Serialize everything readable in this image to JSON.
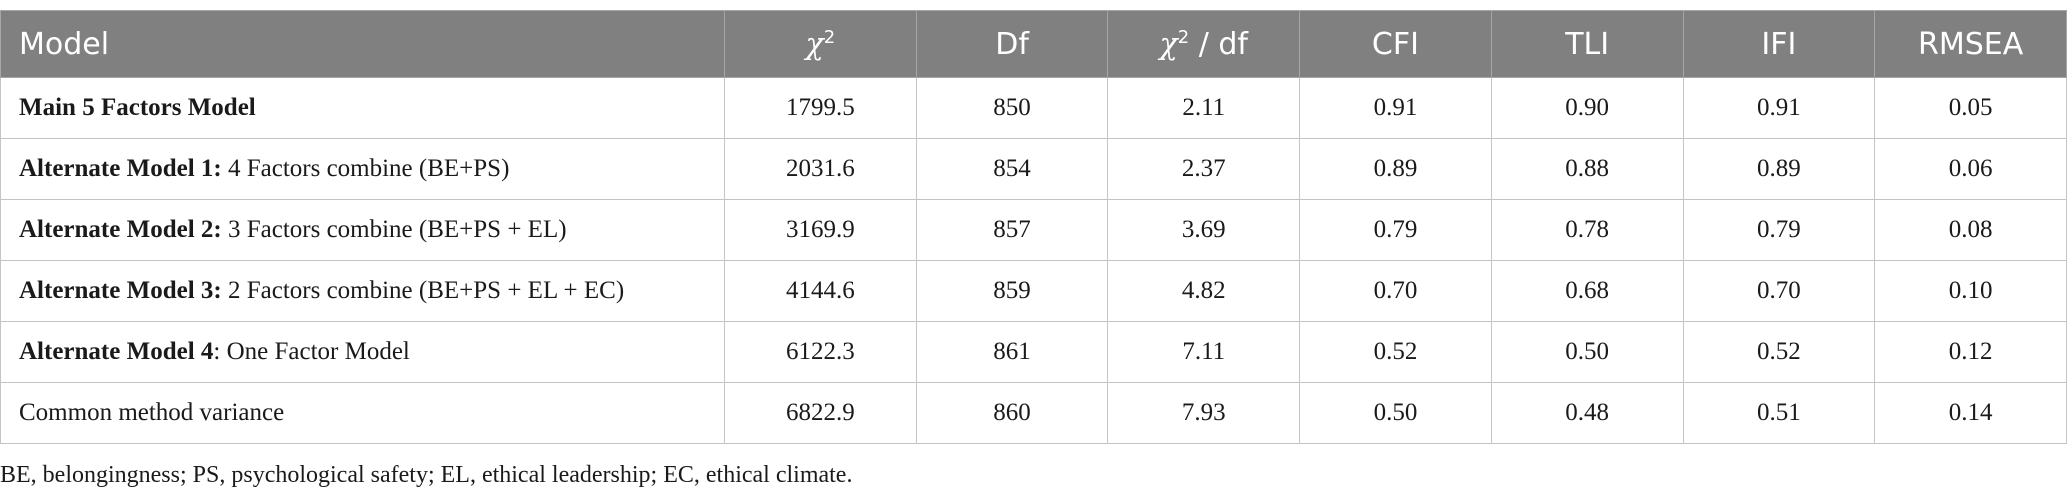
{
  "table": {
    "header": [
      {
        "text": "Model"
      },
      {
        "symbol": "χ",
        "sup": "2"
      },
      {
        "text": "Df"
      },
      {
        "symbol": "χ",
        "sup": "2",
        "text": " / df"
      },
      {
        "text": "CFI"
      },
      {
        "text": "TLI"
      },
      {
        "text": "IFI"
      },
      {
        "text": "RMSEA"
      }
    ],
    "rows": [
      [
        {
          "bold": "Main 5 Factors Model"
        },
        "1799.5",
        "850",
        "2.11",
        "0.91",
        "0.90",
        "0.91",
        "0.05"
      ],
      [
        {
          "bold": "Alternate Model 1:",
          "text": " 4 Factors combine (BE+PS)"
        },
        "2031.6",
        "854",
        "2.37",
        "0.89",
        "0.88",
        "0.89",
        "0.06"
      ],
      [
        {
          "bold": "Alternate Model 2:",
          "text": " 3 Factors combine (BE+PS + EL)"
        },
        "3169.9",
        "857",
        "3.69",
        "0.79",
        "0.78",
        "0.79",
        "0.08"
      ],
      [
        {
          "bold": "Alternate Model 3:",
          "text": " 2 Factors combine (BE+PS + EL + EC)"
        },
        "4144.6",
        "859",
        "4.82",
        "0.70",
        "0.68",
        "0.70",
        "0.10"
      ],
      [
        {
          "bold": "Alternate Model 4",
          "text": ": One Factor Model"
        },
        "6122.3",
        "861",
        "7.11",
        "0.52",
        "0.50",
        "0.52",
        "0.12"
      ],
      [
        {
          "text": "Common method variance"
        },
        "6822.9",
        "860",
        "7.93",
        "0.50",
        "0.48",
        "0.51",
        "0.14"
      ]
    ],
    "footnote": "BE, belongingness; PS, psychological safety; EL, ethical leadership; EC, ethical climate."
  }
}
